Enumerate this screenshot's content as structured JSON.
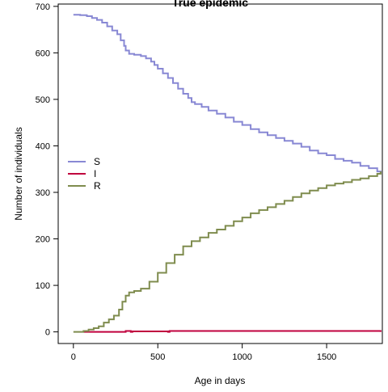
{
  "chart_data": {
    "type": "line",
    "title": "True epidemic",
    "xlabel": "Age in days",
    "ylabel": "Number of individuals",
    "xlim": [
      -90,
      1830
    ],
    "ylim": [
      -25,
      705
    ],
    "xticks": [
      0,
      500,
      1000,
      1500
    ],
    "yticks": [
      0,
      100,
      200,
      300,
      400,
      500,
      600,
      700
    ],
    "grid": false,
    "legend_position": "left",
    "series": [
      {
        "name": "S",
        "color": "#8888d4",
        "step": true,
        "x": [
          0,
          40,
          80,
          110,
          140,
          170,
          200,
          230,
          260,
          280,
          300,
          310,
          330,
          360,
          400,
          430,
          460,
          480,
          500,
          530,
          560,
          590,
          620,
          650,
          680,
          700,
          720,
          760,
          800,
          850,
          900,
          950,
          1000,
          1050,
          1100,
          1150,
          1200,
          1250,
          1300,
          1350,
          1400,
          1450,
          1500,
          1550,
          1600,
          1650,
          1700,
          1750,
          1800,
          1820
        ],
        "y": [
          682,
          681,
          679,
          675,
          671,
          665,
          657,
          648,
          640,
          627,
          615,
          605,
          598,
          596,
          593,
          588,
          581,
          574,
          566,
          556,
          546,
          535,
          523,
          512,
          503,
          494,
          490,
          484,
          476,
          469,
          461,
          452,
          445,
          436,
          429,
          423,
          417,
          411,
          405,
          398,
          390,
          384,
          380,
          372,
          368,
          364,
          357,
          352,
          345,
          342
        ]
      },
      {
        "name": "I",
        "color": "#c0003e",
        "step": true,
        "x": [
          60,
          300,
          310,
          340,
          350,
          560,
          570,
          1820
        ],
        "y": [
          0,
          0,
          2,
          0,
          1,
          0,
          2,
          0
        ]
      },
      {
        "name": "R",
        "color": "#7f8c4e",
        "step": true,
        "x": [
          0,
          30,
          60,
          90,
          120,
          150,
          180,
          210,
          240,
          270,
          290,
          310,
          330,
          360,
          400,
          450,
          500,
          550,
          600,
          650,
          700,
          750,
          800,
          850,
          900,
          950,
          1000,
          1050,
          1100,
          1150,
          1200,
          1250,
          1300,
          1350,
          1400,
          1450,
          1500,
          1550,
          1600,
          1650,
          1700,
          1750,
          1800,
          1820
        ],
        "y": [
          0,
          0,
          2,
          5,
          8,
          12,
          20,
          27,
          35,
          48,
          65,
          78,
          85,
          88,
          93,
          108,
          127,
          148,
          166,
          184,
          195,
          203,
          213,
          220,
          228,
          238,
          246,
          255,
          262,
          268,
          275,
          282,
          290,
          298,
          304,
          309,
          315,
          319,
          322,
          327,
          330,
          335,
          340,
          345
        ]
      }
    ]
  }
}
